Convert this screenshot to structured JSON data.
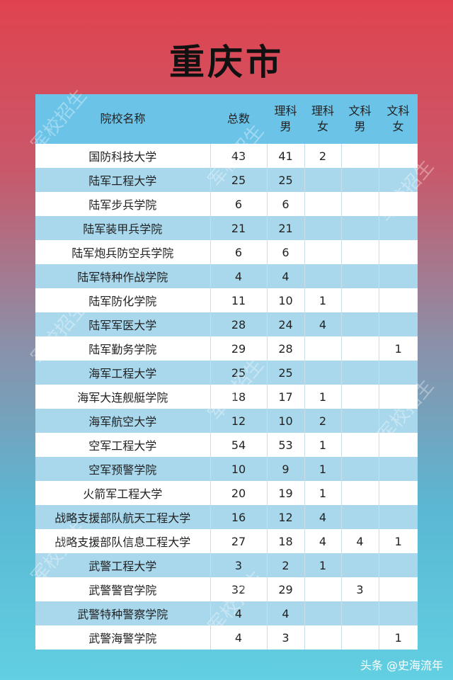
{
  "title": "重庆市",
  "table": {
    "headers": [
      "院校名称",
      "总数",
      "理科男",
      "理科女",
      "文科男",
      "文科女"
    ],
    "rows": [
      [
        "国防科技大学",
        "43",
        "41",
        "2",
        "",
        ""
      ],
      [
        "陆军工程大学",
        "25",
        "25",
        "",
        "",
        ""
      ],
      [
        "陆军步兵学院",
        "6",
        "6",
        "",
        "",
        ""
      ],
      [
        "陆军装甲兵学院",
        "21",
        "21",
        "",
        "",
        ""
      ],
      [
        "陆军炮兵防空兵学院",
        "6",
        "6",
        "",
        "",
        ""
      ],
      [
        "陆军特种作战学院",
        "4",
        "4",
        "",
        "",
        ""
      ],
      [
        "陆军防化学院",
        "11",
        "10",
        "1",
        "",
        ""
      ],
      [
        "陆军军医大学",
        "28",
        "24",
        "4",
        "",
        ""
      ],
      [
        "陆军勤务学院",
        "29",
        "28",
        "",
        "",
        "1"
      ],
      [
        "海军工程大学",
        "25",
        "25",
        "",
        "",
        ""
      ],
      [
        "海军大连舰艇学院",
        "18",
        "17",
        "1",
        "",
        ""
      ],
      [
        "海军航空大学",
        "12",
        "10",
        "2",
        "",
        ""
      ],
      [
        "空军工程大学",
        "54",
        "53",
        "1",
        "",
        ""
      ],
      [
        "空军预警学院",
        "10",
        "9",
        "1",
        "",
        ""
      ],
      [
        "火箭军工程大学",
        "20",
        "19",
        "1",
        "",
        ""
      ],
      [
        "战略支援部队航天工程大学",
        "16",
        "12",
        "4",
        "",
        ""
      ],
      [
        "战略支援部队信息工程大学",
        "27",
        "18",
        "4",
        "4",
        "1"
      ],
      [
        "武警工程大学",
        "3",
        "2",
        "1",
        "",
        ""
      ],
      [
        "武警警官学院",
        "32",
        "29",
        "",
        "3",
        ""
      ],
      [
        "武警特种警察学院",
        "4",
        "4",
        "",
        "",
        ""
      ],
      [
        "武警海警学院",
        "4",
        "3",
        "",
        "",
        "1"
      ]
    ]
  },
  "watermark": "军校招生",
  "footer": "头条 @史海流年",
  "colors": {
    "header_bg": "#6cc3e8",
    "stripe": "#a9d8ec",
    "top": "#e0434f",
    "bottom": "#62cfe2"
  }
}
